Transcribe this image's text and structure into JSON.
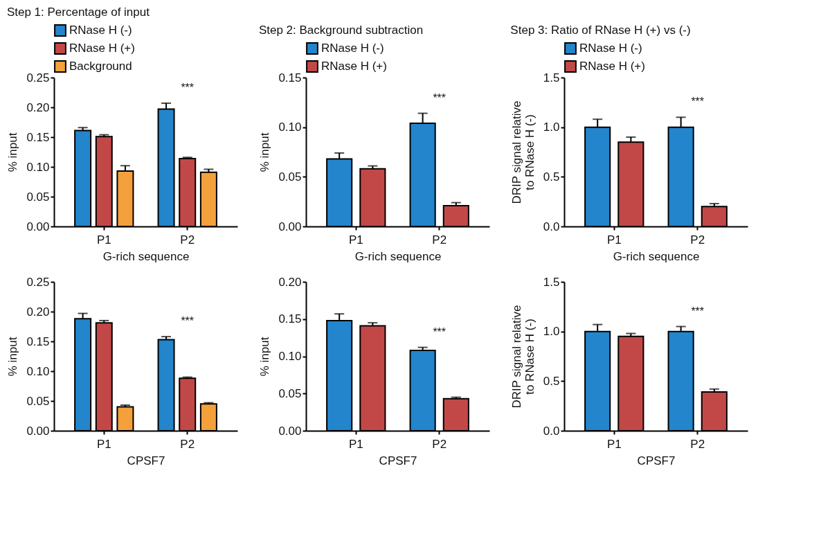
{
  "chart_data": [
    {
      "type": "bar",
      "title": "Step 1: Percentage of input",
      "xlabel": "G-rich sequence",
      "ylabel": "% input",
      "categories": [
        "P1",
        "P2"
      ],
      "legend": "top left",
      "series": [
        {
          "name": "RNase H (-)",
          "color": "#2385cb",
          "values": [
            0.161,
            0.197
          ],
          "errors": [
            0.005,
            0.01
          ]
        },
        {
          "name": "RNase H (+)",
          "color": "#c24848",
          "values": [
            0.151,
            0.114
          ],
          "errors": [
            0.003,
            0.002
          ]
        },
        {
          "name": "Background",
          "color": "#f4a03c",
          "values": [
            0.093,
            0.091
          ],
          "errors": [
            0.009,
            0.005
          ]
        }
      ],
      "ylim": [
        0,
        0.25
      ],
      "yticks": [
        {
          "value": 0,
          "label": "0.00"
        },
        {
          "value": 0.05,
          "label": "0.05"
        },
        {
          "value": 0.1,
          "label": "0.10"
        },
        {
          "value": 0.15,
          "label": "0.15"
        },
        {
          "value": 0.2,
          "label": "0.20"
        },
        {
          "value": 0.25,
          "label": "0.25"
        }
      ],
      "annotations": [
        "***"
      ]
    },
    {
      "type": "bar",
      "title": "Step 2: Background subtraction",
      "xlabel": "G-rich sequence",
      "ylabel": "% input",
      "categories": [
        "P1",
        "P2"
      ],
      "legend": "top left",
      "series": [
        {
          "name": "RNase H (-)",
          "color": "#2385cb",
          "values": [
            0.068,
            0.104
          ],
          "errors": [
            0.006,
            0.01
          ]
        },
        {
          "name": "RNase H (+)",
          "color": "#c24848",
          "values": [
            0.058,
            0.021
          ],
          "errors": [
            0.003,
            0.003
          ]
        }
      ],
      "ylim": [
        0,
        0.15
      ],
      "yticks": [
        {
          "value": 0,
          "label": "0.00"
        },
        {
          "value": 0.05,
          "label": "0.05"
        },
        {
          "value": 0.1,
          "label": "0.10"
        },
        {
          "value": 0.15,
          "label": "0.15"
        }
      ],
      "annotations": [
        "***"
      ]
    },
    {
      "type": "bar",
      "title": "Step 3: Ratio of RNase H (+) vs (-)",
      "xlabel": "G-rich sequence",
      "ylabel": "DRIP signal relative to RNase H (-)",
      "categories": [
        "P1",
        "P2"
      ],
      "legend": "top left",
      "series": [
        {
          "name": "RNase H (-)",
          "color": "#2385cb",
          "values": [
            1.0,
            1.0
          ],
          "errors": [
            0.08,
            0.1
          ]
        },
        {
          "name": "RNase H (+)",
          "color": "#c24848",
          "values": [
            0.85,
            0.2
          ],
          "errors": [
            0.05,
            0.03
          ]
        }
      ],
      "ylim": [
        0,
        1.5
      ],
      "yticks": [
        {
          "value": 0,
          "label": "0.0"
        },
        {
          "value": 0.5,
          "label": "0.5"
        },
        {
          "value": 1,
          "label": "1.0"
        },
        {
          "value": 1.5,
          "label": "1.5"
        }
      ],
      "annotations": [
        "***"
      ]
    },
    {
      "type": "bar",
      "xlabel": "CPSF7",
      "ylabel": "% input",
      "categories": [
        "P1",
        "P2"
      ],
      "series": [
        {
          "color": "#2385cb",
          "values": [
            0.188,
            0.153
          ],
          "errors": [
            0.009,
            0.005
          ]
        },
        {
          "color": "#c24848",
          "values": [
            0.181,
            0.088
          ],
          "errors": [
            0.004,
            0.002
          ]
        },
        {
          "color": "#f4a03c",
          "values": [
            0.04,
            0.045
          ],
          "errors": [
            0.003,
            0.002
          ]
        }
      ],
      "ylim": [
        0,
        0.25
      ],
      "yticks": [
        {
          "value": 0,
          "label": "0.00"
        },
        {
          "value": 0.05,
          "label": "0.05"
        },
        {
          "value": 0.1,
          "label": "0.10"
        },
        {
          "value": 0.15,
          "label": "0.15"
        },
        {
          "value": 0.2,
          "label": "0.20"
        },
        {
          "value": 0.25,
          "label": "0.25"
        }
      ],
      "annotations": [
        "***"
      ]
    },
    {
      "type": "bar",
      "xlabel": "CPSF7",
      "ylabel": "% input",
      "categories": [
        "P1",
        "P2"
      ],
      "series": [
        {
          "color": "#2385cb",
          "values": [
            0.148,
            0.108
          ],
          "errors": [
            0.009,
            0.004
          ]
        },
        {
          "color": "#c24848",
          "values": [
            0.141,
            0.043
          ],
          "errors": [
            0.004,
            0.002
          ]
        }
      ],
      "ylim": [
        0,
        0.2
      ],
      "yticks": [
        {
          "value": 0,
          "label": "0.00"
        },
        {
          "value": 0.05,
          "label": "0.05"
        },
        {
          "value": 0.1,
          "label": "0.10"
        },
        {
          "value": 0.15,
          "label": "0.15"
        },
        {
          "value": 0.2,
          "label": "0.20"
        }
      ],
      "annotations": [
        "***"
      ]
    },
    {
      "type": "bar",
      "xlabel": "CPSF7",
      "ylabel": "DRIP signal relative to RNase H (-)",
      "categories": [
        "P1",
        "P2"
      ],
      "series": [
        {
          "color": "#2385cb",
          "values": [
            1.0,
            1.0
          ],
          "errors": [
            0.07,
            0.05
          ]
        },
        {
          "color": "#c24848",
          "values": [
            0.95,
            0.39
          ],
          "errors": [
            0.03,
            0.03
          ]
        }
      ],
      "ylim": [
        0,
        1.5
      ],
      "yticks": [
        {
          "value": 0,
          "label": "0.0"
        },
        {
          "value": 0.5,
          "label": "0.5"
        },
        {
          "value": 1,
          "label": "1.0"
        },
        {
          "value": 1.5,
          "label": "1.5"
        }
      ],
      "annotations": [
        "***"
      ]
    }
  ]
}
